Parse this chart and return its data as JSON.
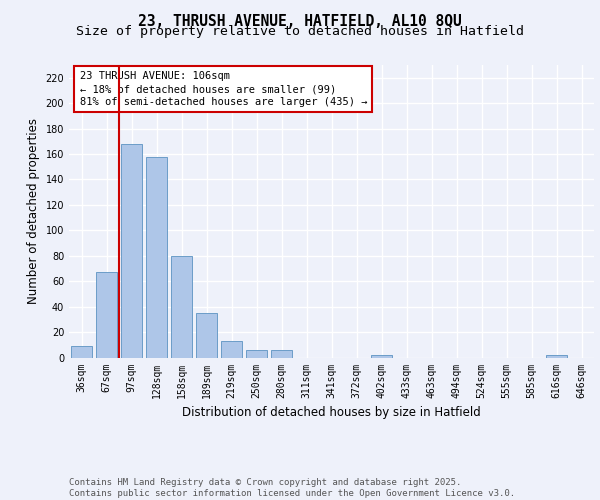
{
  "title_line1": "23, THRUSH AVENUE, HATFIELD, AL10 8QU",
  "title_line2": "Size of property relative to detached houses in Hatfield",
  "xlabel": "Distribution of detached houses by size in Hatfield",
  "ylabel": "Number of detached properties",
  "bar_labels": [
    "36sqm",
    "67sqm",
    "97sqm",
    "128sqm",
    "158sqm",
    "189sqm",
    "219sqm",
    "250sqm",
    "280sqm",
    "311sqm",
    "341sqm",
    "372sqm",
    "402sqm",
    "433sqm",
    "463sqm",
    "494sqm",
    "524sqm",
    "555sqm",
    "585sqm",
    "616sqm",
    "646sqm"
  ],
  "bar_values": [
    9,
    67,
    168,
    158,
    80,
    35,
    13,
    6,
    6,
    0,
    0,
    0,
    2,
    0,
    0,
    0,
    0,
    0,
    0,
    2,
    0
  ],
  "bar_color": "#aec6e8",
  "bar_edge_color": "#6b9dc8",
  "red_line_index": 2,
  "red_line_color": "#cc0000",
  "annotation_text": "23 THRUSH AVENUE: 106sqm\n← 18% of detached houses are smaller (99)\n81% of semi-detached houses are larger (435) →",
  "annotation_box_color": "#ffffff",
  "annotation_box_edge": "#cc0000",
  "ylim": [
    0,
    230
  ],
  "yticks": [
    0,
    20,
    40,
    60,
    80,
    100,
    120,
    140,
    160,
    180,
    200,
    220
  ],
  "footer_text": "Contains HM Land Registry data © Crown copyright and database right 2025.\nContains public sector information licensed under the Open Government Licence v3.0.",
  "bg_color": "#eef1fa",
  "plot_bg_color": "#eef1fa",
  "grid_color": "#ffffff",
  "title_fontsize": 10.5,
  "subtitle_fontsize": 9.5,
  "tick_fontsize": 7,
  "ylabel_fontsize": 8.5,
  "xlabel_fontsize": 8.5,
  "annotation_fontsize": 7.5,
  "footer_fontsize": 6.5
}
